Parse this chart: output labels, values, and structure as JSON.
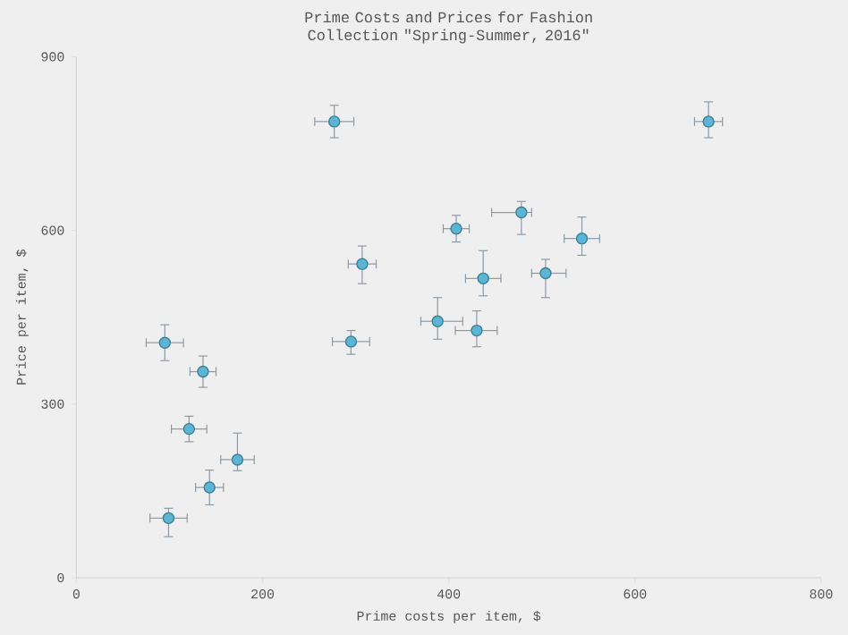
{
  "chart_data": {
    "type": "scatter",
    "title": "Prime Costs and Prices for Fashion Collection \"Spring-Summer, 2016\"",
    "xlabel": "Prime costs per item, $",
    "ylabel": "Price per item, $",
    "xlim": [
      0,
      800
    ],
    "xticks": [
      0,
      200,
      400,
      600,
      800
    ],
    "ylim": [
      0,
      900
    ],
    "yticks": [
      0,
      300,
      600,
      900
    ],
    "marker": "circle",
    "series": [
      {
        "color": "#5bb5d5",
        "x": [
          277,
          95,
          136,
          121,
          173,
          143,
          99,
          307,
          295,
          408,
          388,
          679,
          478,
          543,
          437,
          504,
          430
        ],
        "values": [
          788,
          406,
          356,
          257,
          204,
          156,
          103,
          542,
          408,
          603,
          443,
          788,
          631,
          586,
          517,
          526,
          427
        ],
        "errors": [
          [
            760,
            816
          ],
          [
            375,
            437
          ],
          [
            329,
            383
          ],
          [
            235,
            279
          ],
          [
            185,
            250
          ],
          [
            126,
            186
          ],
          [
            71,
            120
          ],
          [
            508,
            573
          ],
          [
            386,
            427
          ],
          [
            580,
            626
          ],
          [
            412,
            484
          ],
          [
            760,
            822
          ],
          [
            593,
            650
          ],
          [
            557,
            623
          ],
          [
            487,
            565
          ],
          [
            484,
            550
          ],
          [
            399,
            461
          ]
        ],
        "xerrors": [
          [
            256,
            298
          ],
          [
            75,
            115
          ],
          [
            122,
            150
          ],
          [
            102,
            140
          ],
          [
            155,
            191
          ],
          [
            128,
            158
          ],
          [
            79,
            119
          ],
          [
            292,
            322
          ],
          [
            275,
            315
          ],
          [
            394,
            422
          ],
          [
            370,
            415
          ],
          [
            664,
            694
          ],
          [
            446,
            489
          ],
          [
            524,
            562
          ],
          [
            418,
            456
          ],
          [
            489,
            526
          ],
          [
            407,
            452
          ]
        ]
      }
    ]
  }
}
